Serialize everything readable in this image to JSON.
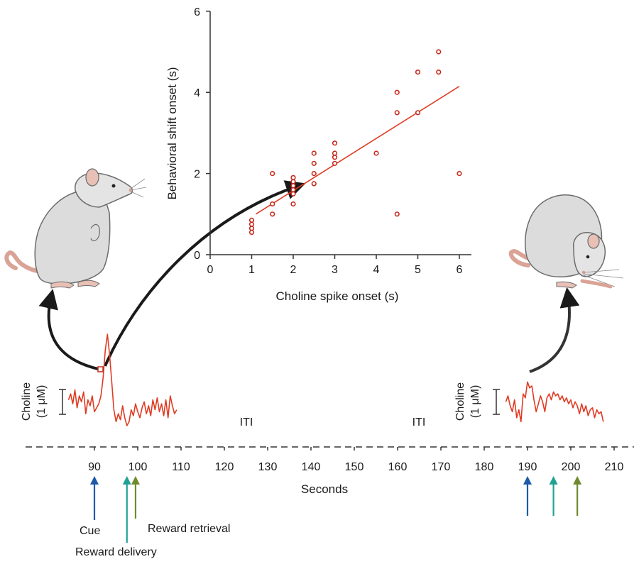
{
  "colors": {
    "point": "#c62a1d",
    "fit": "#e03b23",
    "trace": "#e03b23",
    "cue": "#1c5aa8",
    "delivery": "#21a195",
    "retrieval": "#6f8a2c",
    "axis": "#333333"
  },
  "icons": {
    "rat_left": "rat-sniffing-upright-icon",
    "rat_right": "rat-eating-icon"
  },
  "chart_data": [
    {
      "type": "scatter",
      "title": "",
      "xlabel": "Choline spike onset (s)",
      "ylabel": "Behavioral shift onset (s)",
      "xlim": [
        0,
        6.3
      ],
      "ylim": [
        0,
        6
      ],
      "xticks": [
        "0",
        "1",
        "2",
        "3",
        "4",
        "5",
        "6"
      ],
      "yticks": [
        "0",
        "2",
        "4",
        "6"
      ],
      "grid": false,
      "points": [
        {
          "x": 1.0,
          "y": 0.55
        },
        {
          "x": 1.0,
          "y": 0.65
        },
        {
          "x": 1.0,
          "y": 0.75
        },
        {
          "x": 1.0,
          "y": 0.85
        },
        {
          "x": 1.5,
          "y": 1.0
        },
        {
          "x": 1.5,
          "y": 1.25
        },
        {
          "x": 1.5,
          "y": 2.0
        },
        {
          "x": 2.0,
          "y": 1.25
        },
        {
          "x": 2.0,
          "y": 1.5
        },
        {
          "x": 2.0,
          "y": 1.6
        },
        {
          "x": 2.0,
          "y": 1.7
        },
        {
          "x": 2.0,
          "y": 1.8
        },
        {
          "x": 2.0,
          "y": 1.9
        },
        {
          "x": 2.5,
          "y": 1.75
        },
        {
          "x": 2.5,
          "y": 2.0
        },
        {
          "x": 2.5,
          "y": 2.25
        },
        {
          "x": 2.5,
          "y": 2.5
        },
        {
          "x": 3.0,
          "y": 2.25
        },
        {
          "x": 3.0,
          "y": 2.4
        },
        {
          "x": 3.0,
          "y": 2.5
        },
        {
          "x": 3.0,
          "y": 2.75
        },
        {
          "x": 4.0,
          "y": 2.5
        },
        {
          "x": 4.5,
          "y": 1.0
        },
        {
          "x": 4.5,
          "y": 3.5
        },
        {
          "x": 4.5,
          "y": 4.0
        },
        {
          "x": 5.0,
          "y": 3.5
        },
        {
          "x": 5.0,
          "y": 4.5
        },
        {
          "x": 5.5,
          "y": 4.5
        },
        {
          "x": 5.5,
          "y": 5.0
        },
        {
          "x": 6.0,
          "y": 2.0
        }
      ],
      "fit_line": {
        "x": [
          1.1,
          6.0
        ],
        "y": [
          1.0,
          4.15
        ]
      }
    },
    {
      "type": "line",
      "xlabel": "Seconds",
      "xlim": [
        80,
        213
      ],
      "xticks": [
        90,
        100,
        110,
        120,
        130,
        140,
        150,
        160,
        170,
        180,
        190,
        200,
        210
      ],
      "ylabel": "Choline",
      "scale_bar": "(1 μM)",
      "gap_labels": [
        "ITI",
        "ITI"
      ],
      "series": [
        {
          "x": [
            84,
            84.5,
            85,
            85.5,
            86,
            86.5,
            87,
            87.5,
            88,
            88.5,
            89,
            89.5,
            90,
            90.5,
            91,
            91.5,
            92,
            92.5,
            93,
            93.5,
            94,
            94.5,
            95,
            95.5,
            96,
            96.5,
            97,
            97.5,
            98,
            98.5,
            99,
            99.5,
            100,
            100.5,
            101,
            101.5,
            102,
            102.5,
            103,
            103.5,
            104,
            104.5,
            105,
            105.5,
            106,
            106.5,
            107,
            107.5,
            108,
            108.5,
            109
          ],
          "y": [
            0.3,
            0.6,
            0.1,
            0.8,
            -0.1,
            0.5,
            0.2,
            0.7,
            -0.4,
            0.3,
            0.0,
            0.5,
            -0.3,
            -0.1,
            0.1,
            0.5,
            1.4,
            2.8,
            3.6,
            2.6,
            1.2,
            -0.2,
            -0.8,
            -0.4,
            -0.7,
            0.0,
            -0.6,
            -1.0,
            -0.8,
            -0.2,
            -0.5,
            0.1,
            -0.3,
            -0.6,
            -0.1,
            0.2,
            -0.4,
            0.0,
            -0.5,
            0.3,
            -0.2,
            0.4,
            -0.3,
            0.1,
            -0.5,
            0.3,
            -0.6,
            0.5,
            0.0,
            -0.4,
            -0.2
          ]
        },
        {
          "x": [
            185,
            185.5,
            186,
            186.5,
            187,
            187.5,
            188,
            188.5,
            189,
            189.5,
            190,
            190.5,
            191,
            191.5,
            192,
            192.5,
            193,
            193.5,
            194,
            194.5,
            195,
            195.5,
            196,
            196.5,
            197,
            197.5,
            198,
            198.5,
            199,
            199.5,
            200,
            200.5,
            201,
            201.5,
            202,
            202.5,
            203,
            203.5,
            204,
            204.5,
            205,
            205.5,
            206,
            206.5,
            207,
            207.5
          ],
          "y": [
            0.2,
            0.5,
            0.0,
            -0.3,
            0.3,
            -0.6,
            -0.2,
            -0.8,
            0.6,
            0.4,
            1.2,
            0.9,
            1.0,
            0.3,
            -0.3,
            0.1,
            0.5,
            0.2,
            -0.3,
            0.4,
            0.6,
            0.3,
            0.7,
            0.5,
            0.6,
            0.3,
            0.5,
            0.2,
            0.4,
            0.1,
            0.3,
            -0.1,
            0.2,
            0.0,
            -0.4,
            0.1,
            -0.3,
            0.0,
            -0.5,
            -0.2,
            -0.1,
            -0.6,
            -0.2,
            -0.4,
            -0.3,
            -0.8
          ]
        }
      ],
      "events": [
        {
          "label": "Cue",
          "x": 90,
          "color_key": "cue",
          "group": 1
        },
        {
          "label": "Reward delivery",
          "x": 97.5,
          "color_key": "delivery",
          "group": 1
        },
        {
          "label": "Reward retrieval",
          "x": 99.5,
          "color_key": "retrieval",
          "group": 1
        },
        {
          "label": "",
          "x": 190,
          "color_key": "cue",
          "group": 2
        },
        {
          "label": "",
          "x": 196,
          "color_key": "delivery",
          "group": 2
        },
        {
          "label": "",
          "x": 201.5,
          "color_key": "retrieval",
          "group": 2
        }
      ]
    }
  ]
}
